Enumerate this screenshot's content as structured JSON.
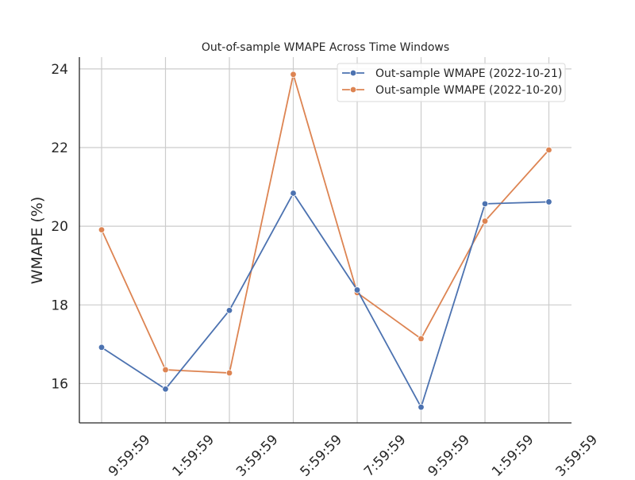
{
  "chart_data": {
    "type": "line",
    "title": "Out-of-sample WMAPE Across Time Windows",
    "xlabel": "",
    "ylabel": "WMAPE (%)",
    "categories": [
      "9:59:59",
      "1:59:59",
      "3:59:59",
      "5:59:59",
      "7:59:59",
      "9:59:59",
      "1:59:59",
      "3:59:59"
    ],
    "ylim": [
      15,
      24.3
    ],
    "yticks": [
      16,
      18,
      20,
      22,
      24
    ],
    "grid": true,
    "legend_position": "top-right",
    "series": [
      {
        "name": "Out-sample WMAPE (2022-10-21)",
        "color": "#4c72b0",
        "values": [
          16.92,
          15.86,
          17.86,
          20.84,
          18.38,
          15.4,
          20.57,
          20.62
        ]
      },
      {
        "name": "Out-sample WMAPE (2022-10-20)",
        "color": "#dd8452",
        "values": [
          19.91,
          16.35,
          16.27,
          23.86,
          18.31,
          17.14,
          20.13,
          21.94
        ]
      }
    ]
  }
}
